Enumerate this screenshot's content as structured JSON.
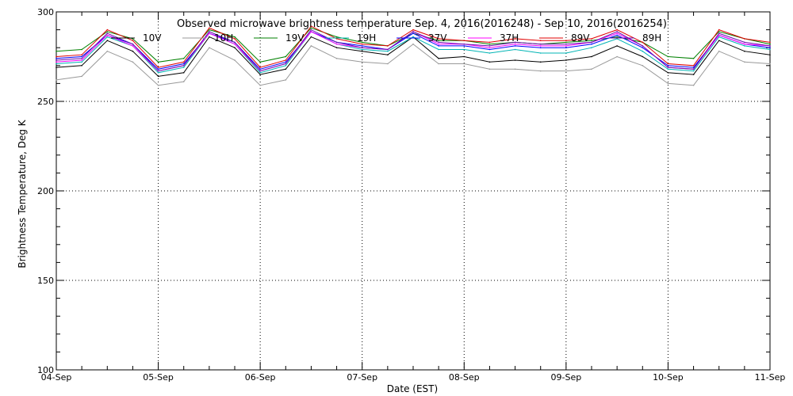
{
  "chart_data": {
    "type": "line",
    "title": "Observed microwave brightness temperature Sep. 4, 2016(2016248) - Sep 10, 2016(2016254)",
    "xlabel": "Date (EST)",
    "ylabel": "Brightness Temperature, Deg K",
    "ylim": [
      100,
      300
    ],
    "xlim": [
      0,
      7
    ],
    "grid": true,
    "legend_position": "top",
    "x_tick_labels": [
      "04-Sep",
      "05-Sep",
      "06-Sep",
      "07-Sep",
      "08-Sep",
      "09-Sep",
      "10-Sep",
      "11-Sep"
    ],
    "y_tick_labels": [
      "100",
      "150",
      "200",
      "250",
      "300"
    ],
    "x": [
      0,
      0.25,
      0.5,
      0.75,
      1.0,
      1.25,
      1.5,
      1.75,
      2.0,
      2.25,
      2.5,
      2.75,
      3.0,
      3.25,
      3.5,
      3.75,
      4.0,
      4.25,
      4.5,
      4.75,
      5.0,
      5.25,
      5.5,
      5.75,
      6.0,
      6.25,
      6.5,
      6.75,
      7.0
    ],
    "series": [
      {
        "name": "10V",
        "color": "#000000",
        "values": [
          269,
          270,
          284,
          278,
          264,
          266,
          286,
          280,
          265,
          268,
          286,
          280,
          278,
          276,
          286,
          274,
          275,
          272,
          273,
          272,
          273,
          275,
          281,
          275,
          266,
          265,
          284,
          278,
          276
        ]
      },
      {
        "name": "10H",
        "color": "#999999",
        "values": [
          262,
          264,
          278,
          272,
          259,
          261,
          280,
          273,
          259,
          262,
          281,
          274,
          272,
          271,
          282,
          271,
          271,
          268,
          268,
          267,
          267,
          268,
          275,
          270,
          260,
          259,
          278,
          272,
          271
        ]
      },
      {
        "name": "19V",
        "color": "#008000",
        "values": [
          278,
          279,
          289,
          285,
          272,
          274,
          290,
          286,
          272,
          275,
          291,
          286,
          283,
          281,
          288,
          284,
          284,
          282,
          283,
          282,
          283,
          284,
          286,
          283,
          275,
          274,
          289,
          285,
          282
        ]
      },
      {
        "name": "19H",
        "color": "#00B4B4",
        "values": [
          271,
          272,
          286,
          281,
          266,
          269,
          288,
          282,
          266,
          270,
          289,
          282,
          279,
          278,
          286,
          279,
          279,
          277,
          279,
          277,
          277,
          280,
          285,
          278,
          268,
          267,
          286,
          281,
          279
        ]
      },
      {
        "name": "37V",
        "color": "#0000FF",
        "values": [
          274,
          275,
          287,
          282,
          268,
          271,
          288,
          283,
          268,
          272,
          289,
          283,
          281,
          279,
          288,
          281,
          281,
          279,
          281,
          280,
          280,
          282,
          287,
          280,
          270,
          269,
          287,
          282,
          280
        ]
      },
      {
        "name": "37H",
        "color": "#FF00FF",
        "values": [
          272,
          273,
          287,
          281,
          267,
          270,
          288,
          282,
          267,
          271,
          289,
          282,
          280,
          279,
          289,
          282,
          282,
          280,
          282,
          281,
          281,
          283,
          288,
          281,
          269,
          268,
          287,
          282,
          281
        ]
      },
      {
        "name": "89V",
        "color": "#E00000",
        "values": [
          275,
          276,
          290,
          284,
          269,
          272,
          291,
          285,
          269,
          273,
          292,
          285,
          282,
          281,
          290,
          285,
          284,
          283,
          285,
          284,
          284,
          285,
          290,
          283,
          271,
          270,
          290,
          285,
          283
        ]
      },
      {
        "name": "89H",
        "color": "#6A0DAD",
        "values": [
          273,
          274,
          288,
          282,
          267,
          270,
          289,
          283,
          267,
          271,
          290,
          283,
          280,
          279,
          289,
          283,
          282,
          281,
          283,
          282,
          282,
          283,
          289,
          281,
          269,
          268,
          288,
          283,
          281
        ]
      }
    ]
  }
}
